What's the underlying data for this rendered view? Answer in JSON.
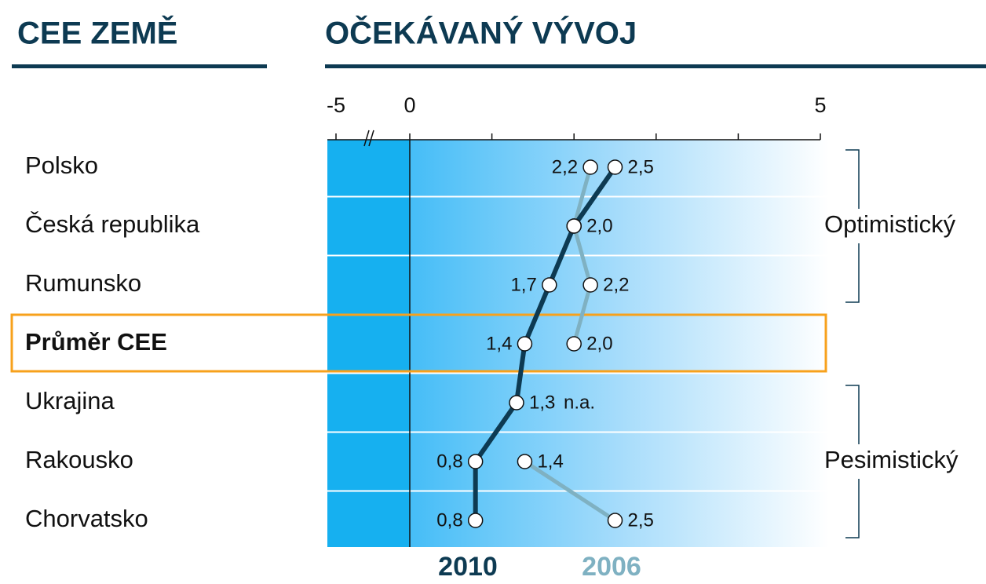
{
  "chart_data": {
    "type": "dot-line",
    "headers": [
      "CEE ZEMĚ",
      "OČEKÁVANÝ VÝVOJ"
    ],
    "categories": [
      "Polsko",
      "Česká republika",
      "Rumunsko",
      "Průměr CEE",
      "Ukrajina",
      "Rakousko",
      "Chorvatsko"
    ],
    "highlight": 3,
    "series": [
      {
        "name": "2010",
        "color": "#0d3a52",
        "values": [
          2.5,
          2.0,
          1.7,
          1.4,
          1.3,
          0.8,
          0.8
        ],
        "value_labels": [
          "2,5",
          "2,0",
          "1,7",
          "1,4",
          "1,3",
          "0,8",
          "0,8"
        ]
      },
      {
        "name": "2006",
        "color": "#7fb1c2",
        "values": [
          2.2,
          2.0,
          2.2,
          2.0,
          null,
          1.4,
          2.5
        ],
        "value_labels": [
          "2,2",
          null,
          "2,2",
          "2,0",
          "n.a.",
          "1,4",
          "2,5"
        ]
      }
    ],
    "xlim": [
      0,
      5
    ],
    "xticks": [
      -5,
      0,
      5
    ],
    "xminorticks": [
      1,
      2,
      3,
      4
    ],
    "axis_break": true,
    "groups": [
      {
        "label": "Optimistický",
        "rows": [
          0,
          2
        ]
      },
      {
        "label": "Pesimistický",
        "rows": [
          4,
          6
        ]
      }
    ]
  }
}
